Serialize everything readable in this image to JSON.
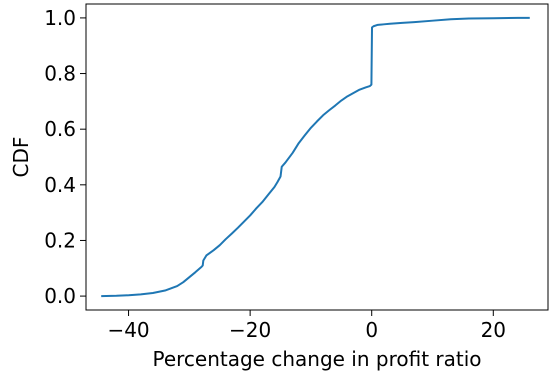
{
  "chart_data": {
    "type": "line",
    "title": "",
    "xlabel": "Percentage change in profit ratio",
    "ylabel": "CDF",
    "xlim": [
      -47,
      29
    ],
    "ylim": [
      -0.05,
      1.05
    ],
    "x_ticks": [
      -40,
      -20,
      0,
      20
    ],
    "x_tick_labels": [
      "−40",
      "−20",
      "0",
      "20"
    ],
    "y_ticks": [
      0.0,
      0.2,
      0.4,
      0.6,
      0.8,
      1.0
    ],
    "y_tick_labels": [
      "0.0",
      "0.2",
      "0.4",
      "0.6",
      "0.8",
      "1.0"
    ],
    "grid": false,
    "legend": "none",
    "color": "#1f77b4",
    "series": [
      {
        "x": [
          -44.5,
          -42,
          -40,
          -38,
          -36,
          -34,
          -33,
          -32,
          -31,
          -30,
          -29,
          -28,
          -27.8,
          -27.7,
          -27.2,
          -26,
          -25,
          -24,
          -23,
          -22,
          -21,
          -20,
          -19,
          -18,
          -17,
          -16,
          -15.5,
          -15,
          -14.8,
          -14.2,
          -13,
          -12,
          -11,
          -10,
          -9,
          -8,
          -7,
          -6,
          -5,
          -4,
          -3,
          -2,
          -1,
          -0.3,
          -0.05,
          0.05,
          0.3,
          1,
          2,
          3,
          5,
          7,
          10,
          13,
          16,
          20,
          24,
          26
        ],
        "y": [
          0.0,
          0.001,
          0.003,
          0.006,
          0.011,
          0.02,
          0.028,
          0.036,
          0.05,
          0.068,
          0.086,
          0.105,
          0.11,
          0.128,
          0.146,
          0.165,
          0.183,
          0.205,
          0.225,
          0.246,
          0.268,
          0.29,
          0.315,
          0.338,
          0.365,
          0.392,
          0.41,
          0.43,
          0.465,
          0.48,
          0.515,
          0.55,
          0.578,
          0.605,
          0.628,
          0.65,
          0.668,
          0.685,
          0.703,
          0.718,
          0.73,
          0.742,
          0.75,
          0.755,
          0.76,
          0.966,
          0.97,
          0.975,
          0.977,
          0.979,
          0.982,
          0.985,
          0.99,
          0.995,
          0.998,
          0.999,
          1.0,
          1.0
        ]
      }
    ]
  }
}
